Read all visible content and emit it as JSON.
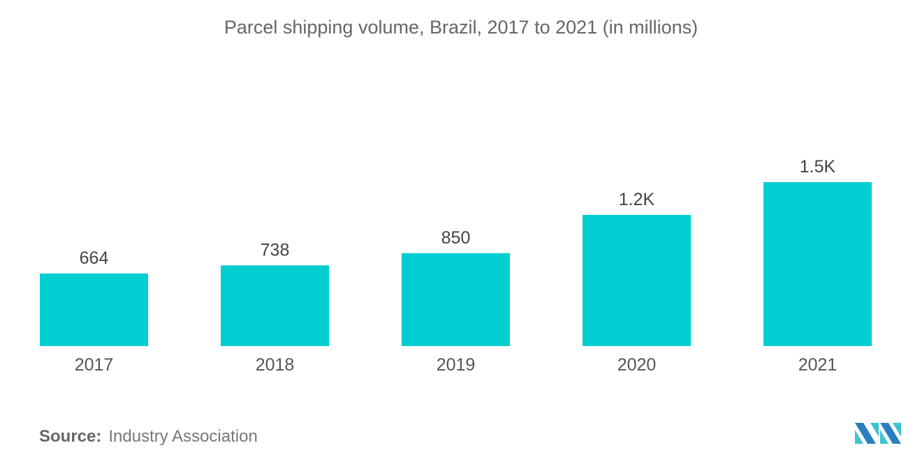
{
  "chart_data": {
    "type": "bar",
    "title": "Parcel shipping volume, Brazil, 2017 to 2021 (in millions)",
    "categories": [
      "2017",
      "2018",
      "2019",
      "2020",
      "2021"
    ],
    "values": [
      664,
      738,
      850,
      1200,
      1500
    ],
    "data_labels": [
      "664",
      "738",
      "850",
      "1.2K",
      "1.5K"
    ],
    "xlabel": "",
    "ylabel": "",
    "ylim": [
      0,
      1500
    ],
    "grid": false,
    "bar_color": "#00CED1"
  },
  "source": {
    "label": "Source:",
    "text": "Industry Association"
  },
  "logo": {
    "colors": [
      "#2A7FC0",
      "#3CC4D0"
    ]
  }
}
